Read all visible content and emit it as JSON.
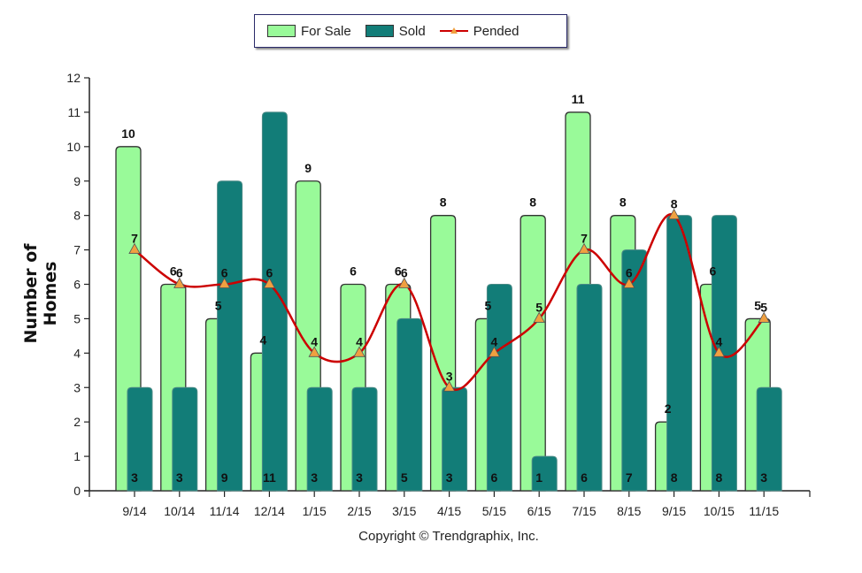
{
  "chart_data": {
    "type": "bar",
    "title": "",
    "xlabel": "",
    "ylabel": "Number of Homes",
    "ylim": [
      0,
      12
    ],
    "yticks": [
      "0",
      "1",
      "2",
      "3",
      "4",
      "5",
      "6",
      "7",
      "8",
      "9",
      "10",
      "11",
      "12"
    ],
    "grid": false,
    "legend_position": "top-center",
    "categories": [
      "9/14",
      "10/14",
      "11/14",
      "12/14",
      "1/15",
      "2/15",
      "3/15",
      "4/15",
      "5/15",
      "6/15",
      "7/15",
      "8/15",
      "9/15",
      "10/15",
      "11/15"
    ],
    "series": [
      {
        "name": "For Sale",
        "kind": "bar",
        "color": "#99fa99",
        "values": [
          10,
          6,
          5,
          4,
          9,
          6,
          6,
          8,
          5,
          8,
          11,
          8,
          2,
          6,
          5
        ]
      },
      {
        "name": "Sold",
        "kind": "bar",
        "color": "#127d78",
        "values": [
          3,
          3,
          9,
          11,
          3,
          3,
          5,
          3,
          6,
          1,
          6,
          7,
          8,
          8,
          3
        ]
      },
      {
        "name": "Pended",
        "kind": "line",
        "color": "#cc0000",
        "marker_color": "#f0a040",
        "values": [
          7,
          6,
          6,
          6,
          4,
          4,
          6,
          3,
          4,
          5,
          7,
          6,
          8,
          4,
          5
        ]
      }
    ],
    "footer": "Copyright © Trendgraphix, Inc."
  }
}
